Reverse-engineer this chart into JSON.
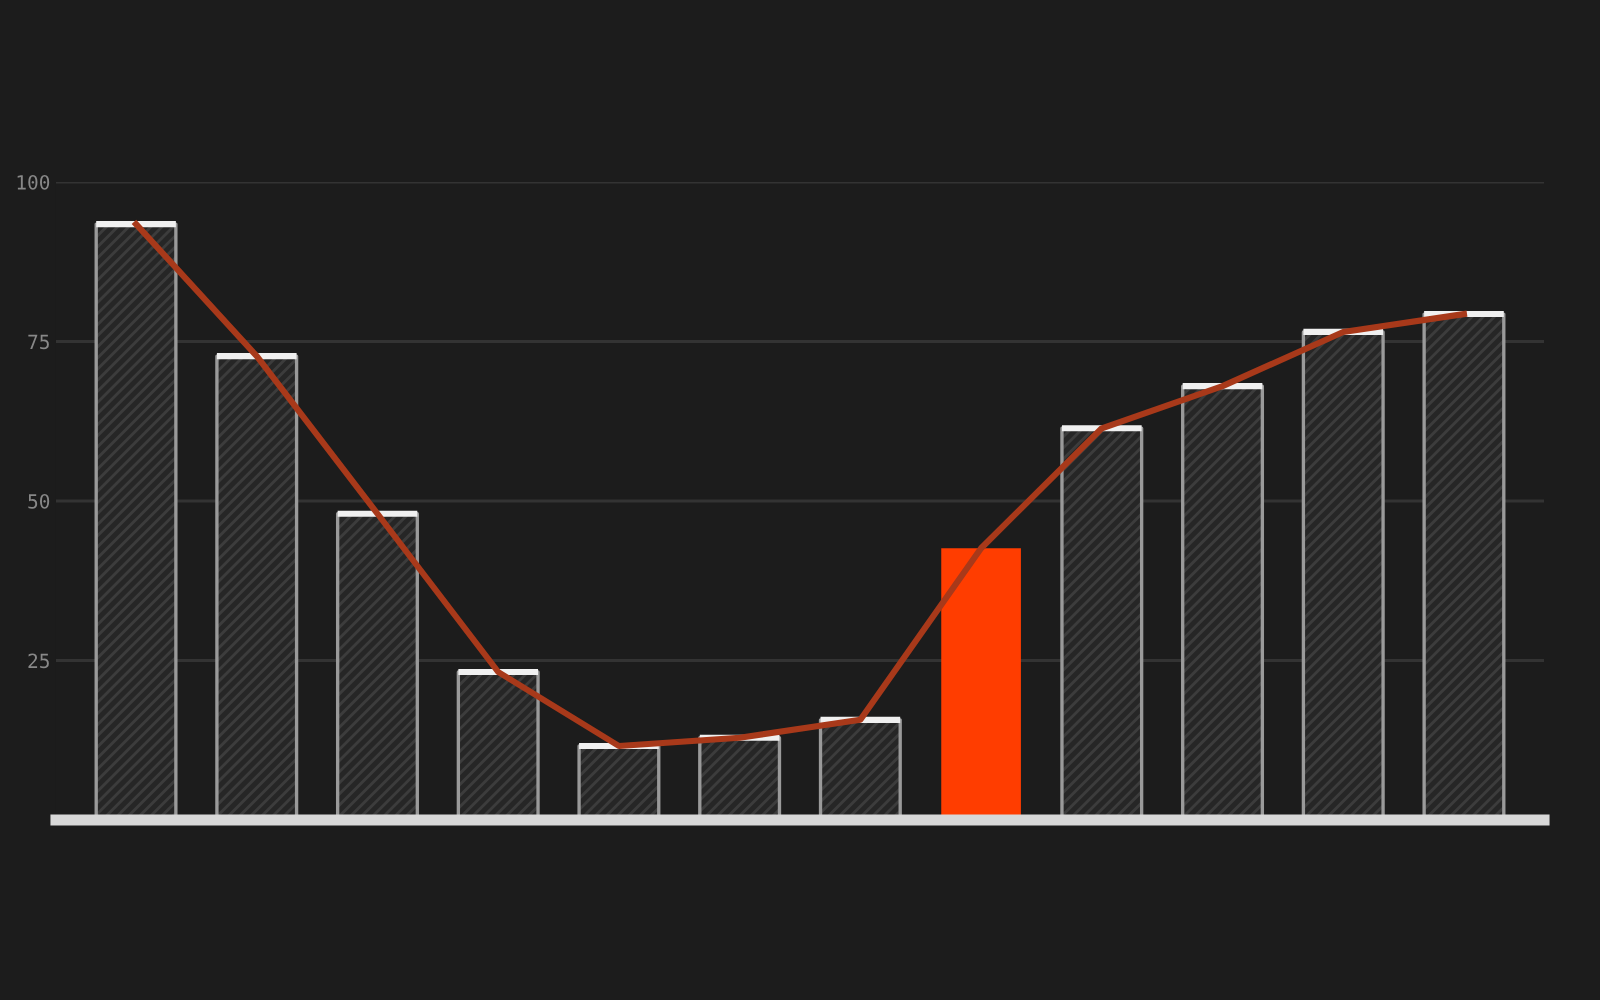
{
  "chart_data": {
    "type": "bar",
    "categories": [
      null,
      null,
      null,
      null,
      null,
      null,
      null,
      null,
      null,
      null,
      null,
      null
    ],
    "series": [
      {
        "colors": [
          "#262626",
          "#262626",
          "#262626",
          "#262626",
          "#262626",
          "#262626",
          "#262626",
          "#ff3d00",
          "#262626",
          "#262626",
          "#262626",
          "#262626"
        ],
        "values": [
          93.4,
          72.7,
          48,
          23.2,
          11.6,
          12.9,
          15.7,
          42.6,
          61.4,
          68,
          76.5,
          79.3
        ]
      },
      {
        "type": "line",
        "color": "#a8391a",
        "values": [
          93.4,
          72.7,
          48,
          23.2,
          11.6,
          12.9,
          15.7,
          42.6,
          61.4,
          68,
          76.5,
          79.3
        ]
      }
    ],
    "ylim": [
      0,
      100
    ],
    "yticks": [
      25,
      50,
      75,
      100
    ],
    "grid": "y",
    "marker": "none",
    "line_style": "solid"
  }
}
